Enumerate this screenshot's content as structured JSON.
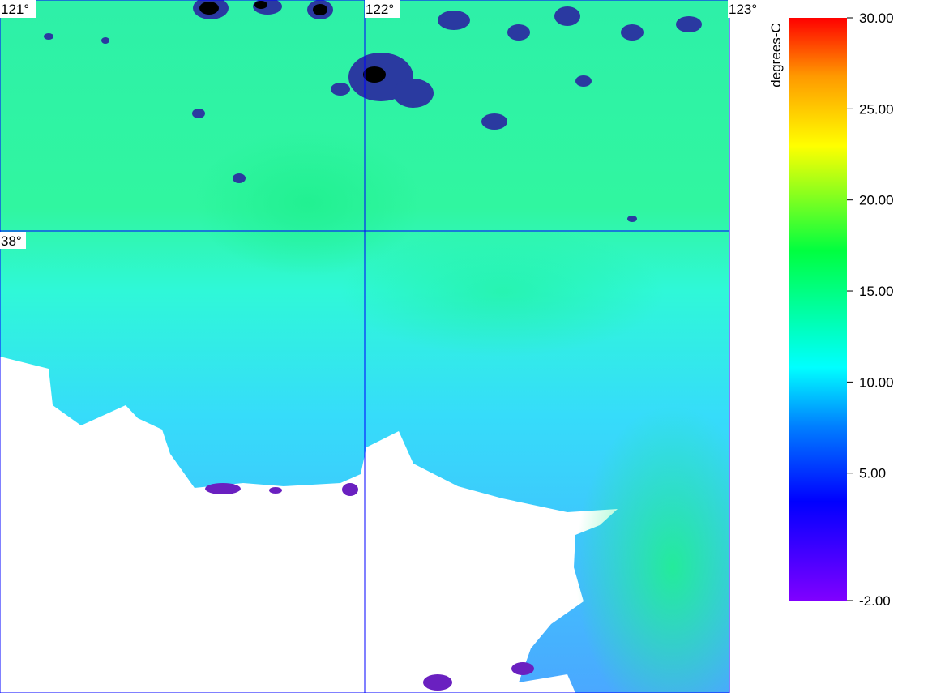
{
  "map": {
    "lon_lim": [
      121,
      123
    ],
    "lat_lim": [
      37,
      38.5
    ],
    "lon_lines": [
      {
        "value": 121,
        "label": "121°"
      },
      {
        "value": 122,
        "label": "122°"
      },
      {
        "value": 123,
        "label": "123°"
      }
    ],
    "lat_lines": [
      {
        "value": 38,
        "label": "38°"
      }
    ]
  },
  "colorbar": {
    "title": "degrees-C",
    "lim": [
      -2,
      30
    ],
    "ticks": [
      {
        "value": 30,
        "label": "30.00"
      },
      {
        "value": 25,
        "label": "25.00"
      },
      {
        "value": 20,
        "label": "20.00"
      },
      {
        "value": 15,
        "label": "15.00"
      },
      {
        "value": 10,
        "label": "10.00"
      },
      {
        "value": 5,
        "label": "5.00"
      },
      {
        "value": -2,
        "label": "-2.00"
      }
    ]
  }
}
